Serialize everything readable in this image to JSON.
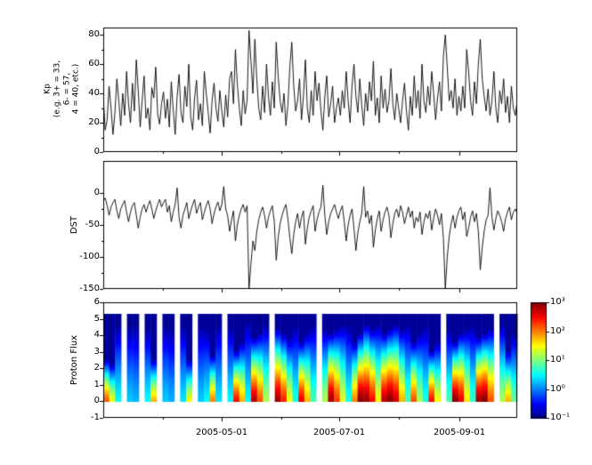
{
  "figure": {
    "background": "#ffffff",
    "line_color": "#000000",
    "tick_color": "#000000"
  },
  "xaxis": {
    "xlim_days": [
      0,
      214
    ],
    "ticks": {
      "values": [
        61,
        122,
        184
      ],
      "labels": [
        "2005-05-01",
        "2005-07-01",
        "2005-09-01"
      ],
      "minor": [
        31,
        92,
        153
      ]
    }
  },
  "chart_data": [
    {
      "type": "line",
      "name": "kp-panel",
      "ylabel_lines": [
        "Kp",
        "(e.g. 3+ = 33,",
        "6- = 57,",
        "4 = 40, etc.)"
      ],
      "ylim": [
        0,
        85
      ],
      "yticks": {
        "values": [
          0,
          20,
          40,
          60,
          80
        ],
        "labels": [
          "0",
          "20",
          "40",
          "60",
          "80"
        ],
        "minor": [
          10,
          30,
          50,
          70
        ]
      },
      "series": [
        {
          "name": "Kp",
          "color": "#000000",
          "values": [
            38,
            15,
            22,
            45,
            30,
            12,
            27,
            50,
            35,
            18,
            40,
            25,
            55,
            33,
            20,
            47,
            28,
            63,
            42,
            17,
            35,
            52,
            23,
            30,
            15,
            44,
            37,
            58,
            26,
            19,
            33,
            41,
            23,
            36,
            17,
            48,
            29,
            12,
            38,
            53,
            27,
            20,
            45,
            31,
            60,
            24,
            15,
            37,
            49,
            22,
            33,
            18,
            55,
            40,
            27,
            13,
            35,
            47,
            30,
            21,
            42,
            28,
            17,
            39,
            24,
            50,
            55,
            33,
            70,
            46,
            30,
            18,
            42,
            26,
            35,
            83,
            62,
            40,
            77,
            50,
            30,
            22,
            45,
            27,
            60,
            38,
            25,
            48,
            30,
            75,
            52,
            35,
            27,
            40,
            18,
            32,
            58,
            75,
            45,
            28,
            35,
            50,
            22,
            38,
            63,
            30,
            20,
            42,
            25,
            55,
            35,
            47,
            28,
            15,
            38,
            52,
            24,
            33,
            45,
            20,
            30,
            37,
            25,
            42,
            30,
            55,
            35,
            20,
            45,
            60,
            38,
            27,
            50,
            32,
            18,
            40,
            28,
            48,
            35,
            62,
            25,
            37,
            20,
            52,
            30,
            43,
            27,
            35,
            57,
            33,
            22,
            40,
            30,
            20,
            35,
            47,
            28,
            15,
            38,
            25,
            52,
            30,
            42,
            23,
            60,
            35,
            27,
            45,
            32,
            55,
            40,
            22,
            37,
            48,
            28,
            65,
            80,
            58,
            35,
            42,
            30,
            50,
            25,
            38,
            28,
            45,
            30,
            70,
            55,
            35,
            25,
            48,
            33,
            60,
            77,
            50,
            38,
            28,
            43,
            25,
            35,
            55,
            30,
            20,
            42,
            33,
            50,
            27,
            38,
            20,
            45,
            30,
            25,
            35
          ]
        }
      ]
    },
    {
      "type": "line",
      "name": "dst-panel",
      "ylabel": "DST",
      "ylim": [
        -150,
        50
      ],
      "yticks": {
        "values": [
          0,
          -50,
          -100,
          -150
        ],
        "labels": [
          "0",
          "-50",
          "-100",
          "-150"
        ],
        "minor": [
          -25,
          -75,
          -125
        ]
      },
      "series": [
        {
          "name": "DST",
          "color": "#000000",
          "values": [
            -12,
            -8,
            -20,
            -35,
            -22,
            -15,
            -10,
            -28,
            -40,
            -25,
            -18,
            -12,
            -30,
            -45,
            -30,
            -20,
            -15,
            -35,
            -55,
            -38,
            -25,
            -18,
            -30,
            -20,
            -12,
            -25,
            -40,
            -28,
            -18,
            -10,
            -22,
            -15,
            -10,
            -30,
            -20,
            -45,
            -30,
            -18,
            8,
            -38,
            -55,
            -35,
            -25,
            -15,
            -40,
            -28,
            -18,
            -10,
            -32,
            -22,
            -15,
            -42,
            -30,
            -20,
            -12,
            -25,
            -48,
            -32,
            -22,
            -14,
            -28,
            -18,
            10,
            -25,
            -35,
            -60,
            -42,
            -28,
            -75,
            -50,
            -35,
            -25,
            -18,
            -30,
            -20,
            -150,
            -110,
            -75,
            -90,
            -60,
            -42,
            -30,
            -22,
            -35,
            -55,
            -38,
            -28,
            -20,
            -45,
            -105,
            -70,
            -48,
            -35,
            -25,
            -18,
            -40,
            -70,
            -95,
            -65,
            -45,
            -32,
            -55,
            -38,
            -28,
            -80,
            -55,
            -38,
            -28,
            -20,
            -60,
            -42,
            -30,
            -22,
            12,
            -35,
            -65,
            -45,
            -32,
            -25,
            -18,
            -30,
            -40,
            -28,
            -20,
            -45,
            -75,
            -50,
            -35,
            -25,
            -55,
            -90,
            -62,
            -45,
            -32,
            10,
            -38,
            -28,
            -48,
            -35,
            -85,
            -58,
            -40,
            -28,
            -60,
            -42,
            -30,
            -22,
            -35,
            -70,
            -48,
            -32,
            -25,
            -38,
            -20,
            -30,
            -48,
            -35,
            -22,
            -38,
            -28,
            -55,
            -38,
            -45,
            -30,
            -65,
            -45,
            -32,
            -40,
            -28,
            -58,
            -40,
            -25,
            -35,
            -50,
            -32,
            -70,
            -150,
            -100,
            -68,
            -48,
            -35,
            -55,
            -38,
            -28,
            -22,
            -42,
            -30,
            -68,
            -55,
            -38,
            -28,
            -45,
            -32,
            -60,
            -120,
            -85,
            -60,
            -42,
            -35,
            8,
            -38,
            -58,
            -40,
            -28,
            -35,
            -45,
            -60,
            -40,
            -30,
            -22,
            -42,
            -30,
            -25,
            -32
          ]
        }
      ]
    },
    {
      "type": "heatmap",
      "name": "proton-flux-panel",
      "ylabel": "Proton Flux",
      "ylim": [
        -1,
        6
      ],
      "yticks": {
        "values": [
          -1,
          0,
          1,
          2,
          3,
          4,
          5,
          6
        ],
        "labels": [
          "-1",
          "0",
          "1",
          "2",
          "3",
          "4",
          "5",
          "6"
        ],
        "minor": []
      },
      "colormap": "jet",
      "clim_log10": [
        -1,
        3
      ],
      "column_y_extent": [
        0,
        5.3
      ],
      "columns_note": "each column = [peak_log10_flux_at_bottom, relative_height]; null = data gap (white stripe)",
      "columns": [
        [
          2.2,
          0.5
        ],
        [
          1.5,
          0.45
        ],
        [
          0.5,
          0.9
        ],
        null,
        [
          0.3,
          0.9
        ],
        [
          0.2,
          0.9
        ],
        null,
        [
          0.5,
          0.85
        ],
        [
          1.8,
          0.5
        ],
        null,
        [
          0.3,
          0.9
        ],
        [
          0.2,
          0.85
        ],
        null,
        [
          0.4,
          0.9
        ],
        [
          1.5,
          0.5
        ],
        null,
        [
          0.3,
          0.9
        ],
        [
          0.5,
          0.85
        ],
        [
          2.0,
          0.55
        ],
        [
          0.4,
          0.9
        ],
        null,
        [
          0.5,
          0.9
        ],
        [
          2.5,
          0.6
        ],
        [
          1.8,
          0.7
        ],
        [
          0.5,
          0.95
        ],
        [
          2.8,
          0.75
        ],
        [
          2.2,
          0.8
        ],
        [
          1.2,
          0.9
        ],
        null,
        [
          2.9,
          0.85
        ],
        [
          2.4,
          0.8
        ],
        [
          1.5,
          0.75
        ],
        [
          0.6,
          0.9
        ],
        [
          2.6,
          0.7
        ],
        [
          1.8,
          0.8
        ],
        [
          0.8,
          0.9
        ],
        null,
        [
          1.2,
          0.85
        ],
        [
          2.9,
          0.8
        ],
        [
          2.3,
          0.85
        ],
        [
          1.4,
          0.9
        ],
        [
          0.6,
          0.9
        ],
        [
          2.0,
          0.7
        ],
        [
          3.0,
          0.8
        ],
        [
          2.9,
          0.9
        ],
        [
          2.5,
          0.85
        ],
        [
          1.5,
          0.9
        ],
        [
          2.8,
          0.8
        ],
        [
          3.0,
          0.85
        ],
        [
          2.7,
          0.9
        ],
        [
          1.8,
          0.85
        ],
        [
          0.8,
          0.9
        ],
        [
          2.2,
          0.7
        ],
        [
          1.2,
          0.8
        ],
        [
          0.6,
          0.9
        ],
        [
          2.5,
          0.6
        ],
        [
          1.5,
          0.7
        ],
        null,
        [
          0.8,
          0.85
        ],
        [
          3.0,
          0.7
        ],
        [
          2.6,
          0.8
        ],
        [
          1.6,
          0.85
        ],
        [
          0.7,
          0.9
        ],
        [
          2.9,
          0.75
        ],
        [
          3.0,
          0.8
        ],
        [
          2.2,
          0.85
        ],
        null,
        [
          1.2,
          0.9
        ],
        [
          1.8,
          0.6
        ],
        [
          0.9,
          0.8
        ]
      ],
      "colorbar": {
        "ticks": {
          "values": [
            -1,
            0,
            1,
            2,
            3
          ],
          "labels": [
            "10⁻¹",
            "10⁰",
            "10¹",
            "10²",
            "10³"
          ]
        }
      }
    }
  ]
}
